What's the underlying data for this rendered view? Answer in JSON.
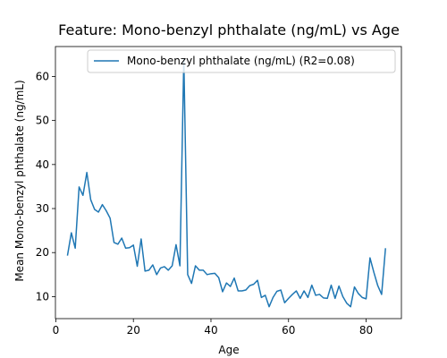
{
  "chart_data": {
    "type": "line",
    "title": "Feature: Mono-benzyl phthalate (ng/mL) vs Age",
    "xlabel": "Age",
    "ylabel": "Mean Mono-benzyl phthalate (ng/mL)",
    "xlim": [
      -0.1,
      89.1
    ],
    "ylim": [
      5.0,
      66.8
    ],
    "xticks": [
      0,
      20,
      40,
      60,
      80
    ],
    "yticks": [
      10,
      20,
      30,
      40,
      50,
      60
    ],
    "grid": false,
    "legend_position": "top-right",
    "series": [
      {
        "name": "Mono-benzyl phthalate (ng/mL) (R2=0.08)",
        "color": "#1f77b4",
        "x": [
          3,
          4,
          5,
          6,
          7,
          8,
          9,
          10,
          11,
          12,
          13,
          14,
          15,
          16,
          17,
          18,
          19,
          20,
          21,
          22,
          23,
          24,
          25,
          26,
          27,
          28,
          29,
          30,
          31,
          32,
          33,
          34,
          35,
          36,
          37,
          38,
          39,
          40,
          41,
          42,
          43,
          44,
          45,
          46,
          47,
          48,
          49,
          50,
          51,
          52,
          53,
          54,
          55,
          56,
          57,
          58,
          59,
          60,
          61,
          62,
          63,
          64,
          65,
          66,
          67,
          68,
          69,
          70,
          71,
          72,
          73,
          74,
          75,
          76,
          77,
          78,
          79,
          80,
          81,
          82,
          83,
          84,
          85
        ],
        "y": [
          19.3,
          24.5,
          21.0,
          34.9,
          33.0,
          38.2,
          32.0,
          29.8,
          29.2,
          30.9,
          29.5,
          27.8,
          22.3,
          21.9,
          23.3,
          21.0,
          21.1,
          21.7,
          16.9,
          23.1,
          15.8,
          16.0,
          17.2,
          15.0,
          16.5,
          16.8,
          16.0,
          17.0,
          21.8,
          17.0,
          64.0,
          15.0,
          13.0,
          17.0,
          16.0,
          16.0,
          15.0,
          15.2,
          15.3,
          14.3,
          11.1,
          13.1,
          12.3,
          14.2,
          11.3,
          11.3,
          11.5,
          12.5,
          12.8,
          13.7,
          9.8,
          10.3,
          7.7,
          9.8,
          11.2,
          11.5,
          8.6,
          9.6,
          10.5,
          11.3,
          9.6,
          11.3,
          9.8,
          12.6,
          10.3,
          10.5,
          9.7,
          9.6,
          12.6,
          9.6,
          12.4,
          10.0,
          8.5,
          7.7,
          12.2,
          10.7,
          9.8,
          9.5,
          18.8,
          15.5,
          12.5,
          10.5,
          21.0
        ]
      }
    ]
  }
}
